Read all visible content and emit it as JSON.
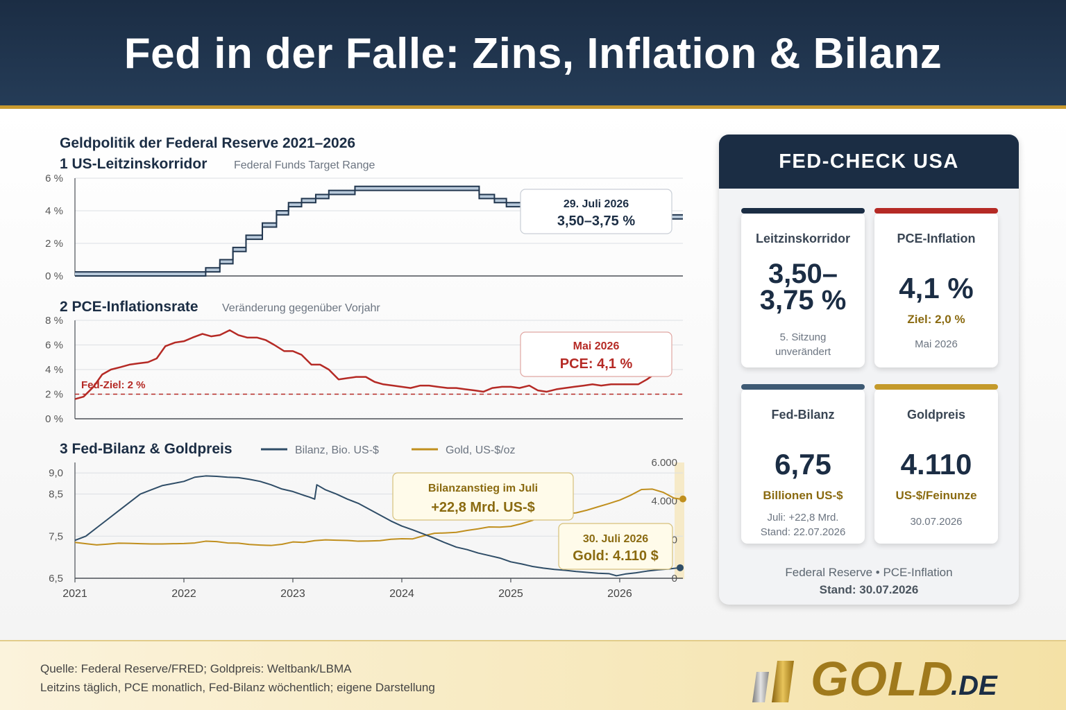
{
  "header": {
    "title": "Fed in der Falle: Zins, Inflation & Bilanz"
  },
  "charts": {
    "main_title": "Geldpolitik der Federal Reserve 2021–2026",
    "rate": {
      "title": "1 US-Leitzinskorridor",
      "subtitle": "Federal Funds Target Range",
      "callout_date": "29. Juli 2026",
      "callout_value": "3,50–3,75 %"
    },
    "pce": {
      "title": "2 PCE-Inflationsrate",
      "subtitle": "Veränderung gegenüber Vorjahr",
      "target_label": "Fed-Ziel: 2 %",
      "callout_date": "Mai 2026",
      "callout_value": "PCE: 4,1 %"
    },
    "balance": {
      "title": "3 Fed-Bilanz & Goldpreis",
      "legend_balance": "Bilanz, Bio. US-$",
      "legend_gold": "Gold, US-$/oz",
      "callout1_title": "Bilanzanstieg im Juli",
      "callout1_value": "+22,8 Mrd. US-$",
      "callout2_date": "30. Juli 2026",
      "callout2_value": "Gold: 4.110 $"
    }
  },
  "chart_data": [
    {
      "type": "step-band",
      "title": "1 US-Leitzinskorridor",
      "subtitle": "Federal Funds Target Range",
      "ylim": [
        0,
        6
      ],
      "yticks": [
        "0 %",
        "2 %",
        "4 %",
        "6 %"
      ],
      "xlim": [
        2021,
        2026.58
      ],
      "color": "#22374f",
      "lower": [
        [
          2021,
          0
        ],
        [
          2022.2,
          0.25
        ],
        [
          2022.33,
          0.75
        ],
        [
          2022.45,
          1.5
        ],
        [
          2022.57,
          2.25
        ],
        [
          2022.72,
          3.0
        ],
        [
          2022.85,
          3.75
        ],
        [
          2022.96,
          4.25
        ],
        [
          2023.08,
          4.5
        ],
        [
          2023.21,
          4.75
        ],
        [
          2023.33,
          5.0
        ],
        [
          2023.57,
          5.25
        ],
        [
          2024.71,
          4.75
        ],
        [
          2024.85,
          4.5
        ],
        [
          2024.96,
          4.25
        ],
        [
          2025.71,
          4.0
        ],
        [
          2025.83,
          3.75
        ],
        [
          2025.95,
          3.5
        ],
        [
          2026.58,
          3.5
        ]
      ],
      "upper": [
        [
          2021,
          0.25
        ],
        [
          2022.2,
          0.5
        ],
        [
          2022.33,
          1.0
        ],
        [
          2022.45,
          1.75
        ],
        [
          2022.57,
          2.5
        ],
        [
          2022.72,
          3.25
        ],
        [
          2022.85,
          4.0
        ],
        [
          2022.96,
          4.5
        ],
        [
          2023.08,
          4.75
        ],
        [
          2023.21,
          5.0
        ],
        [
          2023.33,
          5.25
        ],
        [
          2023.57,
          5.5
        ],
        [
          2024.71,
          5.0
        ],
        [
          2024.85,
          4.75
        ],
        [
          2024.96,
          4.5
        ],
        [
          2025.71,
          4.25
        ],
        [
          2025.83,
          4.0
        ],
        [
          2025.95,
          3.75
        ],
        [
          2026.58,
          3.75
        ]
      ]
    },
    {
      "type": "line",
      "title": "2 PCE-Inflationsrate",
      "subtitle": "Veränderung gegenüber Vorjahr",
      "ylim": [
        0,
        8
      ],
      "yticks": [
        "0 %",
        "2 %",
        "4 %",
        "6 %",
        "8 %"
      ],
      "xlim": [
        2021,
        2026.58
      ],
      "target": 2.0,
      "color": "#b52a25",
      "series": [
        {
          "x": [
            2021.0,
            2021.08,
            2021.17,
            2021.25,
            2021.33,
            2021.42,
            2021.5,
            2021.58,
            2021.67,
            2021.75,
            2021.83,
            2021.92,
            2022.0,
            2022.08,
            2022.17,
            2022.25,
            2022.33,
            2022.42,
            2022.5,
            2022.58,
            2022.67,
            2022.75,
            2022.83,
            2022.92,
            2023.0,
            2023.08,
            2023.17,
            2023.25,
            2023.33,
            2023.42,
            2023.5,
            2023.58,
            2023.67,
            2023.75,
            2023.83,
            2023.92,
            2024.0,
            2024.08,
            2024.17,
            2024.25,
            2024.33,
            2024.42,
            2024.5,
            2024.58,
            2024.67,
            2024.75,
            2024.83,
            2024.92,
            2025.0,
            2025.08,
            2025.17,
            2025.25,
            2025.33,
            2025.42,
            2025.5,
            2025.58,
            2025.67,
            2025.75,
            2025.83,
            2025.92,
            2026.0,
            2026.08,
            2026.17,
            2026.25,
            2026.33,
            2026.42
          ],
          "y": [
            1.6,
            1.8,
            2.6,
            3.6,
            4.0,
            4.2,
            4.4,
            4.5,
            4.6,
            4.9,
            5.9,
            6.2,
            6.3,
            6.6,
            6.9,
            6.7,
            6.8,
            7.2,
            6.8,
            6.6,
            6.6,
            6.4,
            6.0,
            5.5,
            5.5,
            5.2,
            4.4,
            4.4,
            4.0,
            3.2,
            3.3,
            3.4,
            3.4,
            3.0,
            2.8,
            2.7,
            2.6,
            2.5,
            2.7,
            2.7,
            2.6,
            2.5,
            2.5,
            2.4,
            2.3,
            2.2,
            2.5,
            2.6,
            2.6,
            2.5,
            2.7,
            2.3,
            2.2,
            2.4,
            2.5,
            2.6,
            2.7,
            2.8,
            2.7,
            2.8,
            2.8,
            2.8,
            2.8,
            3.2,
            3.7,
            4.1
          ]
        }
      ]
    },
    {
      "type": "line",
      "title": "3 Fed-Bilanz & Goldpreis",
      "xlim": [
        2021,
        2026.58
      ],
      "xticks": [
        "2021",
        "2022",
        "2023",
        "2024",
        "2025",
        "2026"
      ],
      "y_left": {
        "ylim": [
          6.5,
          9.25
        ],
        "ticks": [
          "6,5",
          "7,5",
          "8,5",
          "9,0"
        ]
      },
      "y_right": {
        "ylim": [
          0,
          6000
        ],
        "ticks": [
          "0",
          "2.000",
          "4.000",
          "6.000"
        ]
      },
      "series": [
        {
          "name": "Bilanz, Bio. US-$",
          "color": "#2f4d67",
          "axis": "left",
          "x": [
            2021.0,
            2021.1,
            2021.2,
            2021.3,
            2021.4,
            2021.5,
            2021.6,
            2021.7,
            2021.8,
            2021.9,
            2022.0,
            2022.1,
            2022.2,
            2022.3,
            2022.4,
            2022.5,
            2022.6,
            2022.7,
            2022.8,
            2022.9,
            2023.0,
            2023.1,
            2023.15,
            2023.2,
            2023.22,
            2023.3,
            2023.4,
            2023.5,
            2023.6,
            2023.7,
            2023.8,
            2023.9,
            2024.0,
            2024.1,
            2024.2,
            2024.3,
            2024.4,
            2024.5,
            2024.6,
            2024.7,
            2024.8,
            2024.9,
            2025.0,
            2025.1,
            2025.2,
            2025.3,
            2025.4,
            2025.5,
            2025.6,
            2025.7,
            2025.8,
            2025.9,
            2025.97,
            2026.05,
            2026.15,
            2026.25,
            2026.35,
            2026.45,
            2026.55
          ],
          "y": [
            7.4,
            7.5,
            7.7,
            7.9,
            8.1,
            8.3,
            8.5,
            8.6,
            8.7,
            8.75,
            8.8,
            8.9,
            8.93,
            8.92,
            8.9,
            8.89,
            8.85,
            8.8,
            8.72,
            8.62,
            8.56,
            8.47,
            8.43,
            8.38,
            8.72,
            8.6,
            8.5,
            8.38,
            8.28,
            8.14,
            8.0,
            7.86,
            7.74,
            7.65,
            7.55,
            7.45,
            7.34,
            7.24,
            7.18,
            7.1,
            7.04,
            6.98,
            6.89,
            6.84,
            6.78,
            6.74,
            6.71,
            6.69,
            6.66,
            6.64,
            6.62,
            6.61,
            6.56,
            6.6,
            6.63,
            6.67,
            6.7,
            6.72,
            6.75
          ]
        },
        {
          "name": "Gold, US-$/oz",
          "color": "#c08f1e",
          "axis": "right",
          "x": [
            2021.0,
            2021.1,
            2021.2,
            2021.3,
            2021.4,
            2021.5,
            2021.6,
            2021.7,
            2021.8,
            2021.9,
            2022.0,
            2022.1,
            2022.2,
            2022.3,
            2022.4,
            2022.5,
            2022.6,
            2022.7,
            2022.8,
            2022.9,
            2023.0,
            2023.1,
            2023.2,
            2023.3,
            2023.4,
            2023.5,
            2023.6,
            2023.7,
            2023.8,
            2023.9,
            2024.0,
            2024.1,
            2024.2,
            2024.3,
            2024.4,
            2024.5,
            2024.6,
            2024.7,
            2024.8,
            2024.9,
            2025.0,
            2025.1,
            2025.2,
            2025.3,
            2025.4,
            2025.5,
            2025.6,
            2025.7,
            2025.8,
            2025.9,
            2026.0,
            2026.1,
            2026.2,
            2026.3,
            2026.4,
            2026.5,
            2026.55
          ],
          "y": [
            1860,
            1790,
            1730,
            1770,
            1820,
            1810,
            1790,
            1780,
            1780,
            1790,
            1800,
            1830,
            1920,
            1900,
            1830,
            1820,
            1750,
            1720,
            1700,
            1760,
            1880,
            1860,
            1950,
            1990,
            1970,
            1960,
            1920,
            1930,
            1950,
            2020,
            2050,
            2040,
            2200,
            2330,
            2350,
            2380,
            2480,
            2560,
            2660,
            2650,
            2690,
            2830,
            3000,
            3250,
            3300,
            3330,
            3390,
            3530,
            3700,
            3870,
            4050,
            4300,
            4600,
            4620,
            4450,
            4150,
            4110
          ]
        }
      ]
    }
  ],
  "panel": {
    "title": "FED-CHECK USA",
    "cards": [
      {
        "label": "Leitzinskorridor",
        "value_line1": "3,50–",
        "value_line2": "3,75 %",
        "note1": "5. Sitzung",
        "note2": "unverändert",
        "color": "#1b2d44"
      },
      {
        "label": "PCE-Inflation",
        "value": "4,1 %",
        "sub": "Ziel: 2,0 %",
        "note": "Mai 2026",
        "color": "#b52a25"
      },
      {
        "label": "Fed-Bilanz",
        "value": "6,75",
        "sub": "Billionen US-$",
        "note1": "Juli: +22,8 Mrd.",
        "note2": "Stand: 22.07.2026",
        "color": "#3e5a74"
      },
      {
        "label": "Goldpreis",
        "value": "4.110",
        "sub": "US-$/Feinunze",
        "note": "30.07.2026",
        "color": "#c49a2b"
      }
    ],
    "footer_source": "Federal Reserve • PCE-Inflation",
    "footer_date": "Stand: 30.07.2026"
  },
  "footer": {
    "source_line1": "Quelle: Federal Reserve/FRED; Goldpreis: Weltbank/LBMA",
    "source_line2": "Leitzins täglich, PCE monatlich, Fed-Bilanz wöchentlich; eigene Darstellung",
    "logo_text": "GOLD",
    "logo_domain": ".DE"
  }
}
